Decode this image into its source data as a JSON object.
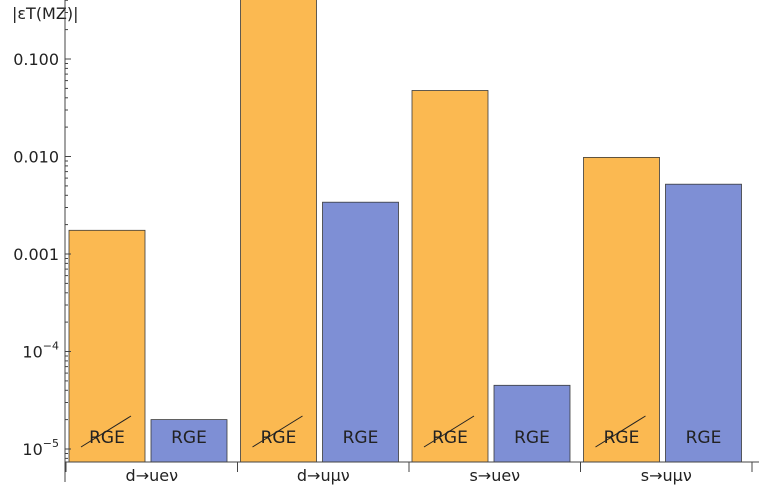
{
  "chart_data": {
    "type": "bar",
    "title": "",
    "ylabel": "|εT(MZ)|",
    "yscale": "log",
    "ylim": [
      7e-06,
      0.6
    ],
    "categories": [
      "d→ueν",
      "d→uμν",
      "s→ueν",
      "s→uμν"
    ],
    "series": [
      {
        "name": "RGE (struck)",
        "color": "#fbb951",
        "values": [
          0.00175,
          1.0,
          0.0475,
          0.0098
        ]
      },
      {
        "name": "RGE",
        "color": "#7e8fd5",
        "values": [
          2e-05,
          0.0034,
          4.5e-05,
          0.0052
        ]
      }
    ],
    "bar_labels": [
      "RGE",
      "RGE"
    ],
    "y_ticks": [
      {
        "value": 0.1,
        "label": "0.100"
      },
      {
        "value": 0.01,
        "label": "0.010"
      },
      {
        "value": 0.001,
        "label": "0.001"
      },
      {
        "value": 0.0001,
        "label": "10",
        "sup": "−4"
      },
      {
        "value": 1e-05,
        "label": "10",
        "sup": "−5"
      }
    ]
  }
}
